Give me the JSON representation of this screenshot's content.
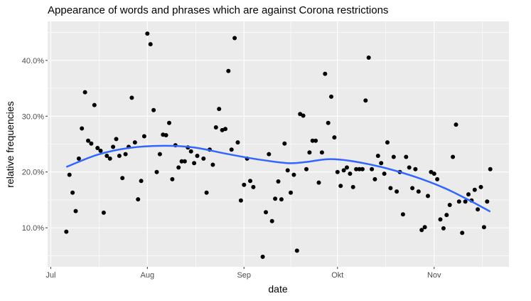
{
  "chart_data": {
    "type": "scatter",
    "title": "Appearance of words and phrases which are against Corona restrictions",
    "xlabel": "date",
    "ylabel": "relative frequencies",
    "x_ticks": [
      {
        "date": "2020-07-01",
        "label": "Jul"
      },
      {
        "date": "2020-08-01",
        "label": "Aug"
      },
      {
        "date": "2020-09-01",
        "label": "Sep"
      },
      {
        "date": "2020-10-01",
        "label": "Okt"
      },
      {
        "date": "2020-11-01",
        "label": "Nov"
      }
    ],
    "y_ticks": [
      {
        "value": 0.1,
        "label": "10.0%"
      },
      {
        "value": 0.2,
        "label": "20.0%"
      },
      {
        "value": 0.3,
        "label": "30.0%"
      },
      {
        "value": 0.4,
        "label": "40.0%"
      }
    ],
    "xlim": [
      "2020-06-30",
      "2020-11-25"
    ],
    "ylim": [
      0.03,
      0.47
    ],
    "grid": true,
    "colors": {
      "panel": "#ebebeb",
      "grid": "#ffffff",
      "points": "#000000",
      "smooth": "#3366ff"
    },
    "series": [
      {
        "points": [
          [
            "2020-07-06",
            0.093
          ],
          [
            "2020-07-07",
            0.195
          ],
          [
            "2020-07-08",
            0.163
          ],
          [
            "2020-07-09",
            0.13
          ],
          [
            "2020-07-10",
            0.224
          ],
          [
            "2020-07-11",
            0.278
          ],
          [
            "2020-07-12",
            0.343
          ],
          [
            "2020-07-13",
            0.256
          ],
          [
            "2020-07-14",
            0.251
          ],
          [
            "2020-07-15",
            0.32
          ],
          [
            "2020-07-16",
            0.243
          ],
          [
            "2020-07-17",
            0.238
          ],
          [
            "2020-07-18",
            0.127
          ],
          [
            "2020-07-19",
            0.229
          ],
          [
            "2020-07-20",
            0.224
          ],
          [
            "2020-07-21",
            0.245
          ],
          [
            "2020-07-22",
            0.259
          ],
          [
            "2020-07-23",
            0.229
          ],
          [
            "2020-07-24",
            0.189
          ],
          [
            "2020-07-25",
            0.232
          ],
          [
            "2020-07-26",
            0.245
          ],
          [
            "2020-07-27",
            0.333
          ],
          [
            "2020-07-28",
            0.253
          ],
          [
            "2020-07-29",
            0.151
          ],
          [
            "2020-07-30",
            0.184
          ],
          [
            "2020-07-31",
            0.264
          ],
          [
            "2020-08-01",
            0.448
          ],
          [
            "2020-08-02",
            0.429
          ],
          [
            "2020-08-03",
            0.311
          ],
          [
            "2020-08-04",
            0.2
          ],
          [
            "2020-08-05",
            0.232
          ],
          [
            "2020-08-06",
            0.267
          ],
          [
            "2020-08-07",
            0.266
          ],
          [
            "2020-08-08",
            0.288
          ],
          [
            "2020-08-09",
            0.187
          ],
          [
            "2020-08-10",
            0.248
          ],
          [
            "2020-08-11",
            0.208
          ],
          [
            "2020-08-12",
            0.219
          ],
          [
            "2020-08-13",
            0.219
          ],
          [
            "2020-08-14",
            0.244
          ],
          [
            "2020-08-15",
            0.237
          ],
          [
            "2020-08-16",
            0.216
          ],
          [
            "2020-08-17",
            0.229
          ],
          [
            "2020-08-19",
            0.224
          ],
          [
            "2020-08-20",
            0.163
          ],
          [
            "2020-08-21",
            0.24
          ],
          [
            "2020-08-22",
            0.213
          ],
          [
            "2020-08-23",
            0.28
          ],
          [
            "2020-08-24",
            0.313
          ],
          [
            "2020-08-25",
            0.275
          ],
          [
            "2020-08-26",
            0.277
          ],
          [
            "2020-08-27",
            0.381
          ],
          [
            "2020-08-28",
            0.24
          ],
          [
            "2020-08-29",
            0.44
          ],
          [
            "2020-08-30",
            0.253
          ],
          [
            "2020-08-31",
            0.149
          ],
          [
            "2020-09-01",
            0.177
          ],
          [
            "2020-09-02",
            0.224
          ],
          [
            "2020-09-03",
            0.184
          ],
          [
            "2020-09-04",
            0.173
          ],
          [
            "2020-09-07",
            0.048
          ],
          [
            "2020-09-08",
            0.128
          ],
          [
            "2020-09-09",
            0.232
          ],
          [
            "2020-09-10",
            0.112
          ],
          [
            "2020-09-11",
            0.152
          ],
          [
            "2020-09-12",
            0.183
          ],
          [
            "2020-09-13",
            0.151
          ],
          [
            "2020-09-14",
            0.251
          ],
          [
            "2020-09-15",
            0.203
          ],
          [
            "2020-09-16",
            0.163
          ],
          [
            "2020-09-17",
            0.195
          ],
          [
            "2020-09-18",
            0.059
          ],
          [
            "2020-09-19",
            0.304
          ],
          [
            "2020-09-20",
            0.301
          ],
          [
            "2020-09-21",
            0.205
          ],
          [
            "2020-09-22",
            0.235
          ],
          [
            "2020-09-23",
            0.256
          ],
          [
            "2020-09-24",
            0.256
          ],
          [
            "2020-09-25",
            0.181
          ],
          [
            "2020-09-26",
            0.235
          ],
          [
            "2020-09-27",
            0.376
          ],
          [
            "2020-09-28",
            0.288
          ],
          [
            "2020-09-29",
            0.335
          ],
          [
            "2020-09-30",
            0.262
          ],
          [
            "2020-10-01",
            0.2
          ],
          [
            "2020-10-02",
            0.175
          ],
          [
            "2020-10-03",
            0.203
          ],
          [
            "2020-10-04",
            0.208
          ],
          [
            "2020-10-05",
            0.197
          ],
          [
            "2020-10-06",
            0.173
          ],
          [
            "2020-10-07",
            0.205
          ],
          [
            "2020-10-08",
            0.205
          ],
          [
            "2020-10-09",
            0.205
          ],
          [
            "2020-10-10",
            0.328
          ],
          [
            "2020-10-11",
            0.405
          ],
          [
            "2020-10-12",
            0.205
          ],
          [
            "2020-10-13",
            0.187
          ],
          [
            "2020-10-14",
            0.229
          ],
          [
            "2020-10-15",
            0.216
          ],
          [
            "2020-10-16",
            0.197
          ],
          [
            "2020-10-17",
            0.253
          ],
          [
            "2020-10-18",
            0.171
          ],
          [
            "2020-10-19",
            0.227
          ],
          [
            "2020-10-20",
            0.165
          ],
          [
            "2020-10-21",
            0.2
          ],
          [
            "2020-10-22",
            0.124
          ],
          [
            "2020-10-23",
            0.227
          ],
          [
            "2020-10-24",
            0.208
          ],
          [
            "2020-10-25",
            0.171
          ],
          [
            "2020-10-26",
            0.205
          ],
          [
            "2020-10-27",
            0.165
          ],
          [
            "2020-10-28",
            0.096
          ],
          [
            "2020-10-29",
            0.101
          ],
          [
            "2020-10-30",
            0.157
          ],
          [
            "2020-10-31",
            0.2
          ],
          [
            "2020-11-01",
            0.197
          ],
          [
            "2020-11-02",
            0.187
          ],
          [
            "2020-11-03",
            0.115
          ],
          [
            "2020-11-04",
            0.099
          ],
          [
            "2020-11-05",
            0.123
          ],
          [
            "2020-11-06",
            0.141
          ],
          [
            "2020-11-07",
            0.227
          ],
          [
            "2020-11-08",
            0.285
          ],
          [
            "2020-11-09",
            0.147
          ],
          [
            "2020-11-10",
            0.091
          ],
          [
            "2020-11-11",
            0.147
          ],
          [
            "2020-11-12",
            0.16
          ],
          [
            "2020-11-13",
            0.149
          ],
          [
            "2020-11-14",
            0.168
          ],
          [
            "2020-11-15",
            0.133
          ],
          [
            "2020-11-16",
            0.173
          ],
          [
            "2020-11-17",
            0.101
          ],
          [
            "2020-11-18",
            0.147
          ],
          [
            "2020-11-19",
            0.205
          ]
        ]
      }
    ],
    "smooth": [
      [
        "2020-07-06",
        0.209
      ],
      [
        "2020-07-16",
        0.231
      ],
      [
        "2020-07-26",
        0.243
      ],
      [
        "2020-08-06",
        0.247
      ],
      [
        "2020-08-16",
        0.244
      ],
      [
        "2020-08-26",
        0.233
      ],
      [
        "2020-09-05",
        0.223
      ],
      [
        "2020-09-15",
        0.216
      ],
      [
        "2020-09-21",
        0.218
      ],
      [
        "2020-09-28",
        0.223
      ],
      [
        "2020-10-05",
        0.22
      ],
      [
        "2020-10-15",
        0.209
      ],
      [
        "2020-10-25",
        0.193
      ],
      [
        "2020-11-04",
        0.172
      ],
      [
        "2020-11-12",
        0.15
      ],
      [
        "2020-11-19",
        0.129
      ]
    ]
  }
}
